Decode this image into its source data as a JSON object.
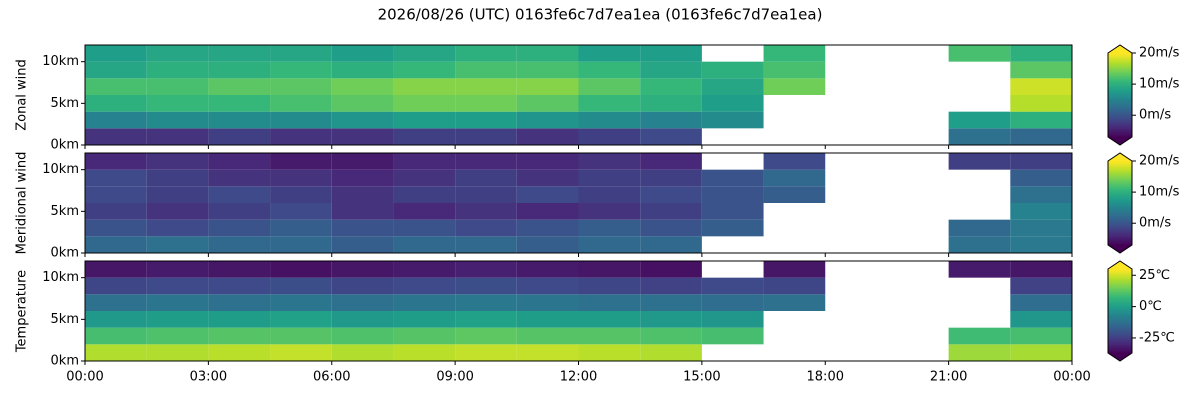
{
  "title": "2026/08/26 (UTC) 0163fe6c7d7ea1ea (0163fe6c7d7ea1ea)",
  "chart_data": [
    {
      "type": "heatmap",
      "ylabel": "Zonal wind",
      "xbins": [
        0,
        1.5,
        3,
        4.5,
        6,
        7.5,
        9,
        10.5,
        12,
        13.5,
        15,
        16.5,
        18,
        19.5,
        21,
        22.5,
        24
      ],
      "ybins": [
        0,
        2,
        4,
        6,
        8,
        10,
        12
      ],
      "xlim": [
        0,
        24
      ],
      "ylim": [
        0,
        12
      ],
      "yticks": [
        {
          "value": 0,
          "label": "0km"
        },
        {
          "value": 5,
          "label": "5km"
        },
        {
          "value": 10,
          "label": "10km"
        }
      ],
      "values": [
        [
          -3,
          -3,
          -2,
          -3,
          -3,
          -2,
          -2,
          -3,
          -2,
          -1,
          null,
          null,
          null,
          null,
          3,
          2
        ],
        [
          5,
          6,
          6,
          6,
          7,
          8,
          8,
          7,
          6,
          5,
          6,
          null,
          null,
          null,
          8,
          10
        ],
        [
          10,
          11,
          11,
          12,
          13,
          14,
          14,
          13,
          11,
          10,
          8,
          null,
          null,
          null,
          null,
          17
        ],
        [
          12,
          12,
          13,
          13,
          14,
          15,
          15,
          15,
          13,
          11,
          9,
          14,
          null,
          null,
          null,
          18
        ],
        [
          9,
          10,
          10,
          11,
          10,
          11,
          12,
          12,
          11,
          9,
          10,
          12,
          null,
          null,
          null,
          13
        ],
        [
          8,
          9,
          9,
          9,
          8,
          9,
          10,
          10,
          8,
          8,
          null,
          11,
          null,
          null,
          12,
          10
        ]
      ],
      "colorbar": {
        "colormap": "viridis",
        "lim": [
          -7,
          20
        ],
        "extend": "both",
        "ticks": [
          {
            "value": 0,
            "label": "0m/s"
          },
          {
            "value": 10,
            "label": "10m/s"
          },
          {
            "value": 20,
            "label": "20m/s"
          }
        ]
      }
    },
    {
      "type": "heatmap",
      "ylabel": "Meridional wind",
      "xbins": [
        0,
        1.5,
        3,
        4.5,
        6,
        7.5,
        9,
        10.5,
        12,
        13.5,
        15,
        16.5,
        18,
        19.5,
        21,
        22.5,
        24
      ],
      "ybins": [
        0,
        2,
        4,
        6,
        8,
        10,
        12
      ],
      "xlim": [
        0,
        24
      ],
      "ylim": [
        0,
        12
      ],
      "yticks": [
        {
          "value": 0,
          "label": "0km"
        },
        {
          "value": 5,
          "label": "5km"
        },
        {
          "value": 10,
          "label": "10km"
        }
      ],
      "values": [
        [
          2,
          3,
          2,
          2,
          1,
          2,
          2,
          1,
          2,
          2,
          null,
          null,
          null,
          null,
          3,
          4
        ],
        [
          0,
          -1,
          0,
          1,
          0,
          0,
          -1,
          0,
          1,
          0,
          1,
          null,
          null,
          null,
          2,
          4
        ],
        [
          -2,
          -3,
          -2,
          -1,
          -3,
          -4,
          -3,
          -4,
          -3,
          -2,
          0,
          null,
          null,
          null,
          null,
          5
        ],
        [
          -1,
          -2,
          -1,
          -2,
          -3,
          -2,
          -2,
          -1,
          -2,
          -1,
          0,
          1,
          null,
          null,
          null,
          3
        ],
        [
          -1,
          -2,
          -3,
          -3,
          -4,
          -3,
          -2,
          -3,
          -2,
          -2,
          0,
          2,
          null,
          null,
          null,
          1
        ],
        [
          -4,
          -3,
          -4,
          -5,
          -5,
          -4,
          -4,
          -4,
          -3,
          -4,
          null,
          -1,
          null,
          null,
          -2,
          -2
        ]
      ],
      "colorbar": {
        "colormap": "viridis",
        "lim": [
          -7,
          20
        ],
        "extend": "both",
        "ticks": [
          {
            "value": 0,
            "label": "0m/s"
          },
          {
            "value": 10,
            "label": "10m/s"
          },
          {
            "value": 20,
            "label": "20m/s"
          }
        ]
      }
    },
    {
      "type": "heatmap",
      "ylabel": "Temperature",
      "xbins": [
        0,
        1.5,
        3,
        4.5,
        6,
        7.5,
        9,
        10.5,
        12,
        13.5,
        15,
        16.5,
        18,
        19.5,
        21,
        22.5,
        24
      ],
      "ybins": [
        0,
        2,
        4,
        6,
        8,
        10,
        12
      ],
      "xlim": [
        0,
        24
      ],
      "ylim": [
        0,
        12
      ],
      "xticks": [
        {
          "value": 0,
          "label": "00:00"
        },
        {
          "value": 3,
          "label": "03:00"
        },
        {
          "value": 6,
          "label": "06:00"
        },
        {
          "value": 9,
          "label": "09:00"
        },
        {
          "value": 12,
          "label": "12:00"
        },
        {
          "value": 15,
          "label": "15:00"
        },
        {
          "value": 18,
          "label": "18:00"
        },
        {
          "value": 21,
          "label": "21:00"
        },
        {
          "value": 24,
          "label": "00:00"
        }
      ],
      "yticks": [
        {
          "value": 0,
          "label": "0km"
        },
        {
          "value": 5,
          "label": "5km"
        },
        {
          "value": 10,
          "label": "10km"
        }
      ],
      "values": [
        [
          22,
          22,
          23,
          24,
          22,
          23,
          24,
          24,
          23,
          22,
          null,
          null,
          null,
          null,
          20,
          21
        ],
        [
          10,
          11,
          12,
          12,
          11,
          12,
          13,
          12,
          12,
          11,
          10,
          null,
          null,
          null,
          9,
          10
        ],
        [
          -1,
          0,
          0,
          1,
          -1,
          0,
          1,
          0,
          0,
          -1,
          -2,
          null,
          null,
          null,
          null,
          -2
        ],
        [
          -12,
          -11,
          -12,
          -11,
          -12,
          -11,
          -10,
          -11,
          -12,
          -12,
          -13,
          -12,
          null,
          null,
          null,
          -13
        ],
        [
          -23,
          -22,
          -22,
          -21,
          -23,
          -22,
          -21,
          -22,
          -23,
          -24,
          -22,
          -23,
          null,
          null,
          null,
          -24
        ],
        [
          -33,
          -32,
          -33,
          -34,
          -33,
          -32,
          -31,
          -32,
          -33,
          -34,
          null,
          -33,
          null,
          null,
          -32,
          -33
        ]
      ],
      "colorbar": {
        "colormap": "viridis",
        "lim": [
          -37,
          30
        ],
        "extend": "both",
        "ticks": [
          {
            "value": -25,
            "label": "-25℃"
          },
          {
            "value": 0,
            "label": "0℃"
          },
          {
            "value": 25,
            "label": "25℃"
          }
        ]
      }
    }
  ]
}
